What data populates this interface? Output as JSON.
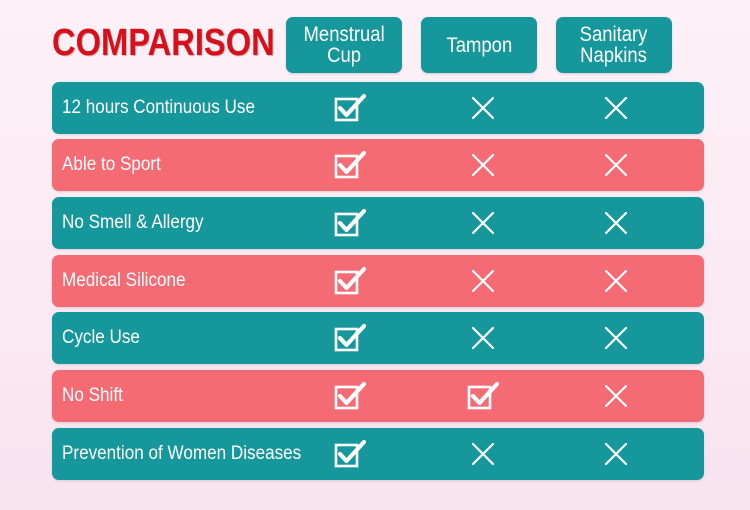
{
  "title": "COMPARISON",
  "columns": [
    {
      "label": "Menstrual\nCup"
    },
    {
      "label": "Tampon"
    },
    {
      "label": "Sanitary\nNapkins"
    }
  ],
  "rows": [
    {
      "label": "12 hours Continuous Use",
      "color": "teal",
      "marks": [
        "check",
        "cross",
        "cross"
      ]
    },
    {
      "label": "Able to Sport",
      "color": "coral",
      "marks": [
        "check",
        "cross",
        "cross"
      ]
    },
    {
      "label": "No Smell & Allergy",
      "color": "teal",
      "marks": [
        "check",
        "cross",
        "cross"
      ]
    },
    {
      "label": "Medical Silicone",
      "color": "coral",
      "marks": [
        "check",
        "cross",
        "cross"
      ]
    },
    {
      "label": "Cycle Use",
      "color": "teal",
      "marks": [
        "check",
        "cross",
        "cross"
      ]
    },
    {
      "label": "No Shift",
      "color": "coral",
      "marks": [
        "check",
        "check",
        "cross"
      ]
    },
    {
      "label": "Prevention of Women Diseases",
      "color": "teal",
      "marks": [
        "check",
        "cross",
        "cross"
      ]
    }
  ],
  "colors": {
    "title": "#d6111b",
    "teal": "#16979c",
    "coral": "#f56b73",
    "background": "#fbe9f3"
  },
  "icons": {
    "check": "checkbox-check-icon",
    "cross": "cross-icon"
  }
}
